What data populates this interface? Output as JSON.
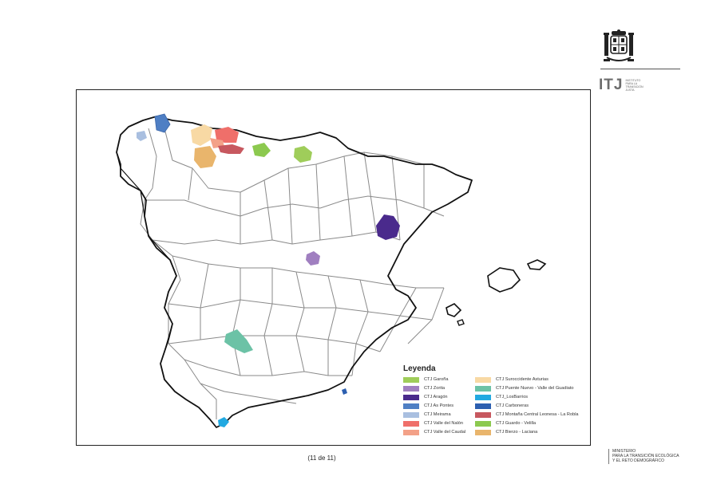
{
  "branding": {
    "itj_mark": "ITJ",
    "itj_tagline": [
      "INSTITUTO",
      "PARA LA",
      "TRANSICIÓN",
      "JUSTA"
    ],
    "ministry_lines": [
      "MINISTERIO",
      "PARA LA TRANSICIÓN ECOLÓGICA",
      "Y EL RETO DEMOGRÁFICO"
    ]
  },
  "map": {
    "legend_title": "Leyenda",
    "regions": [
      {
        "name": "CTJ Garoña",
        "color": "#9fcd5a"
      },
      {
        "name": "CTJ Zorita",
        "color": "#a07fc0"
      },
      {
        "name": "CTJ Aragón",
        "color": "#4a2a8c"
      },
      {
        "name": "CTJ As Pontes",
        "color": "#4f7fc4"
      },
      {
        "name": "CTJ Meirama",
        "color": "#a9bfe0"
      },
      {
        "name": "CTJ Valle del Nalón",
        "color": "#ef6f6a"
      },
      {
        "name": "CTJ Valle del Caudal",
        "color": "#f3a188"
      },
      {
        "name": "CTJ Suroccidente Asturias",
        "color": "#f8d9a4"
      },
      {
        "name": "CTJ Puente Nuevo - Valle del Guadiato",
        "color": "#6cc2a6"
      },
      {
        "name": "CTJ_LosBarrios",
        "color": "#22a9e1"
      },
      {
        "name": "CTJ Carboneras",
        "color": "#2c5fb0"
      },
      {
        "name": "CTJ Montaña Central Leonesa - La Robla",
        "color": "#c7585f"
      },
      {
        "name": "CTJ Guardo - Velilla",
        "color": "#8cc94f"
      },
      {
        "name": "CTJ Bierzo - Laciana",
        "color": "#e9b56c"
      }
    ]
  },
  "footer": {
    "page_counter": "(11 de 11)"
  }
}
